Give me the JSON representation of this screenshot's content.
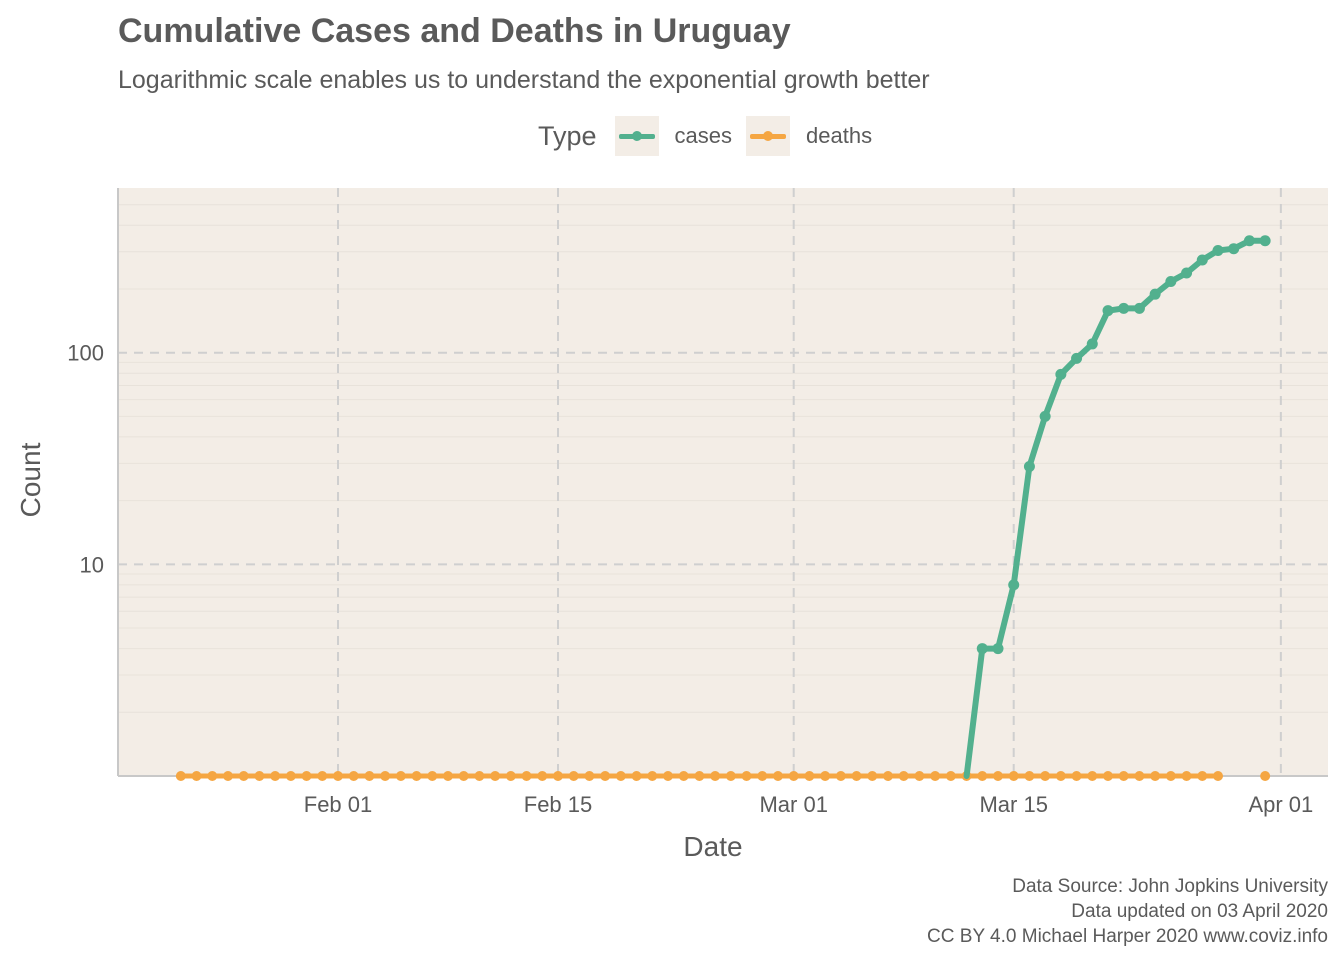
{
  "title": "Cumulative Cases and Deaths in Uruguay",
  "subtitle": "Logarithmic scale enables us to understand the exponential growth better",
  "legend": {
    "title": "Type",
    "items": [
      {
        "label": "cases",
        "color": "#52b08e"
      },
      {
        "label": "deaths",
        "color": "#f5a642"
      }
    ]
  },
  "caption": {
    "line1": "Data Source: John Jopkins University",
    "line2": "Data updated on 03 April 2020",
    "line3": "CC BY 4.0 Michael Harper 2020 www.coviz.info"
  },
  "chart_data": {
    "type": "line",
    "xlabel": "Date",
    "ylabel": "Count",
    "y_scale": "log10",
    "xlim": [
      "2020-01-18",
      "2020-04-04"
    ],
    "ylim": [
      1,
      600
    ],
    "x_ticks": [
      {
        "date": "2020-02-01",
        "label": "Feb 01"
      },
      {
        "date": "2020-02-15",
        "label": "Feb 15"
      },
      {
        "date": "2020-03-01",
        "label": "Mar 01"
      },
      {
        "date": "2020-03-15",
        "label": "Mar 15"
      },
      {
        "date": "2020-04-01",
        "label": "Apr 01"
      }
    ],
    "y_ticks": [
      {
        "value": 10,
        "label": "10"
      },
      {
        "value": 100,
        "label": "100"
      }
    ],
    "grid": true,
    "legend_position": "top",
    "background": "#f3ede6",
    "series": [
      {
        "name": "cases",
        "color": "#52b08e",
        "points": [
          [
            "2020-03-12",
            0
          ],
          [
            "2020-03-13",
            4
          ],
          [
            "2020-03-14",
            4
          ],
          [
            "2020-03-15",
            8
          ],
          [
            "2020-03-16",
            29
          ],
          [
            "2020-03-17",
            50
          ],
          [
            "2020-03-18",
            79
          ],
          [
            "2020-03-19",
            94
          ],
          [
            "2020-03-20",
            110
          ],
          [
            "2020-03-21",
            158
          ],
          [
            "2020-03-22",
            162
          ],
          [
            "2020-03-23",
            162
          ],
          [
            "2020-03-24",
            189
          ],
          [
            "2020-03-25",
            217
          ],
          [
            "2020-03-26",
            238
          ],
          [
            "2020-03-27",
            274
          ],
          [
            "2020-03-28",
            304
          ],
          [
            "2020-03-29",
            310
          ],
          [
            "2020-03-30",
            338
          ],
          [
            "2020-03-31",
            338
          ]
        ]
      },
      {
        "name": "deaths",
        "color": "#f5a642",
        "start": "2020-01-22",
        "end": "2020-03-28",
        "extra_points": [
          "2020-03-31"
        ],
        "value": 0
      }
    ]
  }
}
